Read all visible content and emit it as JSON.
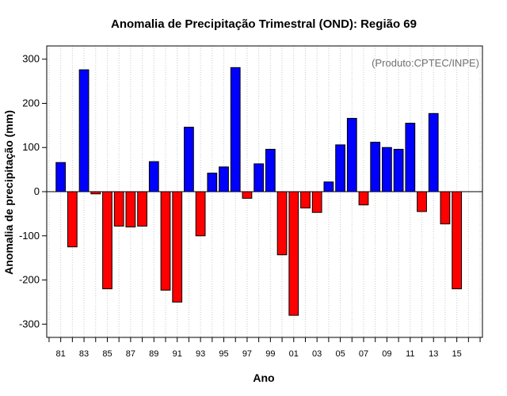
{
  "chart_data": {
    "type": "bar",
    "title": "Anomalia de Precipitação Trimestral (OND): Região 69",
    "xlabel": "Ano",
    "ylabel": "Anomalia de precipitação (mm)",
    "annotation": "(Produto:CPTEC/INPE)",
    "ylim": [
      -330,
      330
    ],
    "yticks": [
      -300,
      -200,
      -100,
      0,
      100,
      200,
      300
    ],
    "xlim": [
      1979.8,
      2017.2
    ],
    "xtick_labels": [
      "81",
      "83",
      "85",
      "87",
      "89",
      "91",
      "93",
      "95",
      "97",
      "99",
      "01",
      "03",
      "05",
      "07",
      "09",
      "11",
      "13",
      "15"
    ],
    "grid": true,
    "colors": {
      "positive": "#0000ff",
      "negative": "#ff0000",
      "grid": "#c8c8c8",
      "axis": "#000000"
    },
    "categories": [
      1981,
      1982,
      1983,
      1984,
      1985,
      1986,
      1987,
      1988,
      1989,
      1990,
      1991,
      1992,
      1993,
      1994,
      1995,
      1996,
      1997,
      1998,
      1999,
      2000,
      2001,
      2002,
      2003,
      2004,
      2005,
      2006,
      2007,
      2008,
      2009,
      2010,
      2011,
      2012,
      2013,
      2014,
      2015
    ],
    "values": [
      66,
      -125,
      276,
      -5,
      -220,
      -78,
      -80,
      -78,
      68,
      -223,
      -250,
      146,
      -100,
      42,
      56,
      281,
      -15,
      63,
      96,
      -143,
      -280,
      -37,
      -47,
      22,
      106,
      166,
      -30,
      112,
      100,
      96,
      155,
      -45,
      177,
      -73,
      -220
    ]
  }
}
